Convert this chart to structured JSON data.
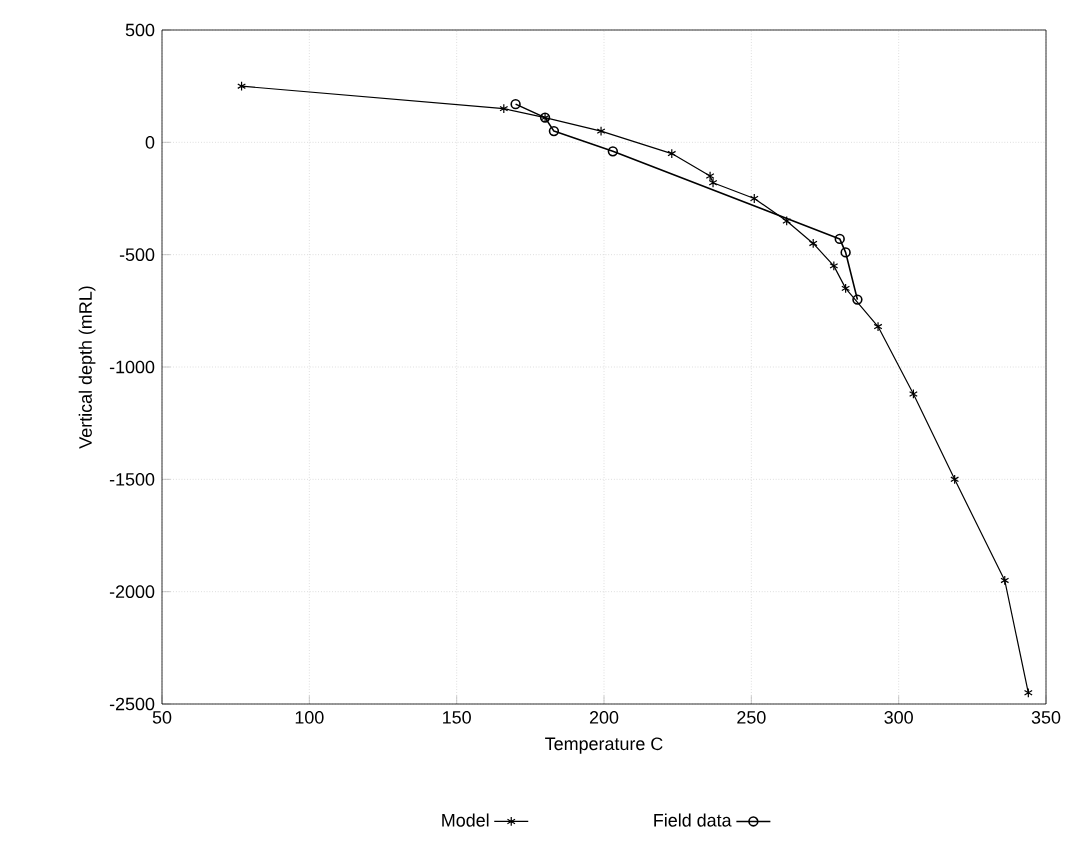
{
  "chart_data": {
    "type": "line",
    "xlabel": "Temperature C",
    "ylabel": "Vertical depth (mRL)",
    "xlim": [
      50,
      350
    ],
    "ylim": [
      -2500,
      500
    ],
    "xticks": [
      50,
      100,
      150,
      200,
      250,
      300,
      350
    ],
    "yticks": [
      -2500,
      -2000,
      -1500,
      -1000,
      -500,
      0,
      500
    ],
    "grid": true,
    "legend": "bottom",
    "line_style": "solid",
    "series": [
      {
        "name": "Model",
        "color": "#000000",
        "marker": "cross",
        "x": [
          77,
          166,
          180,
          199,
          223,
          236,
          237,
          251,
          262,
          271,
          278,
          282,
          293,
          305,
          319,
          336,
          344
        ],
        "values": [
          250,
          150,
          110,
          50,
          -50,
          -150,
          -180,
          -250,
          -350,
          -450,
          -550,
          -650,
          -820,
          -1120,
          -1500,
          -1950,
          -2450
        ]
      },
      {
        "name": "Field data",
        "color": "#000000",
        "marker": "circle",
        "x": [
          170,
          180,
          183,
          203,
          280,
          282,
          286
        ],
        "values": [
          170,
          110,
          50,
          -40,
          -430,
          -490,
          -700
        ]
      }
    ]
  }
}
